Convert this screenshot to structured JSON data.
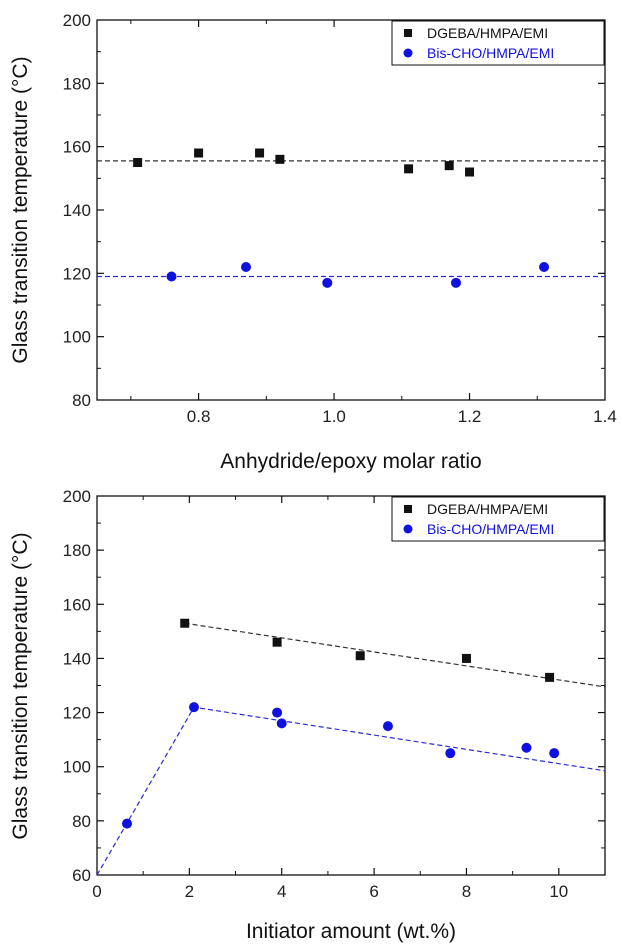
{
  "colors": {
    "series1": "#111111",
    "series2": "#1010e0",
    "fit1": "#333333",
    "fit2": "#2b2bd6"
  },
  "chart_data": [
    {
      "type": "scatter",
      "xlabel": "Anhydride/epoxy molar ratio",
      "ylabel": "Glass transition temperature (°C)",
      "xlim": [
        0.65,
        1.4
      ],
      "ylim": [
        80,
        200
      ],
      "xticks": [
        0.8,
        1.0,
        1.2,
        1.4
      ],
      "xtick_labels": [
        "0.8",
        "1.0",
        "1.2",
        "1.4"
      ],
      "yticks": [
        80,
        100,
        120,
        140,
        160,
        180,
        200
      ],
      "ytick_labels": [
        "80",
        "100",
        "120",
        "140",
        "160",
        "180",
        "200"
      ],
      "legend_position": "top-right",
      "grid": false,
      "series": [
        {
          "name": "DGEBA/HMPA/EMI",
          "marker": "square",
          "color": "#111111",
          "x": [
            0.71,
            0.8,
            0.89,
            0.92,
            1.11,
            1.17,
            1.2
          ],
          "y": [
            155,
            158,
            158,
            156,
            153,
            154,
            152
          ],
          "fit": {
            "x": [
              0.65,
              1.4
            ],
            "y": [
              155.5,
              155.5
            ]
          }
        },
        {
          "name": "Bis-CHO/HMPA/EMI",
          "marker": "circle",
          "color": "#1010e0",
          "x": [
            0.76,
            0.87,
            0.99,
            1.18,
            1.31
          ],
          "y": [
            119,
            122,
            117,
            117,
            122
          ],
          "fit": {
            "x": [
              0.65,
              1.4
            ],
            "y": [
              119,
              119
            ]
          }
        }
      ]
    },
    {
      "type": "scatter",
      "xlabel": "Initiator amount (wt.%)",
      "ylabel": "Glass transition temperature (°C)",
      "xlim": [
        0,
        11
      ],
      "ylim": [
        60,
        200
      ],
      "xticks": [
        0,
        2,
        4,
        6,
        8,
        10
      ],
      "xtick_labels": [
        "0",
        "2",
        "4",
        "6",
        "8",
        "10"
      ],
      "yticks": [
        60,
        80,
        100,
        120,
        140,
        160,
        180,
        200
      ],
      "ytick_labels": [
        "60",
        "80",
        "100",
        "120",
        "140",
        "160",
        "180",
        "200"
      ],
      "legend_position": "top-right",
      "grid": false,
      "series": [
        {
          "name": "DGEBA/HMPA/EMI",
          "marker": "square",
          "color": "#111111",
          "x": [
            1.9,
            3.9,
            5.7,
            8.0,
            9.8
          ],
          "y": [
            153,
            146,
            141,
            140,
            133
          ],
          "fit": {
            "x": [
              1.9,
              11.0
            ],
            "y": [
              153,
              129.5
            ]
          }
        },
        {
          "name": "Bis-CHO/HMPA/EMI",
          "marker": "circle",
          "color": "#1010e0",
          "x": [
            0.65,
            2.1,
            3.9,
            4.0,
            6.3,
            7.65,
            9.3,
            9.9
          ],
          "y": [
            79,
            122,
            120,
            116,
            115,
            105,
            107,
            105
          ],
          "fit": {
            "x": [
              0.0,
              2.1,
              11.0
            ],
            "y": [
              60,
              122,
              98.5
            ]
          }
        }
      ]
    }
  ]
}
